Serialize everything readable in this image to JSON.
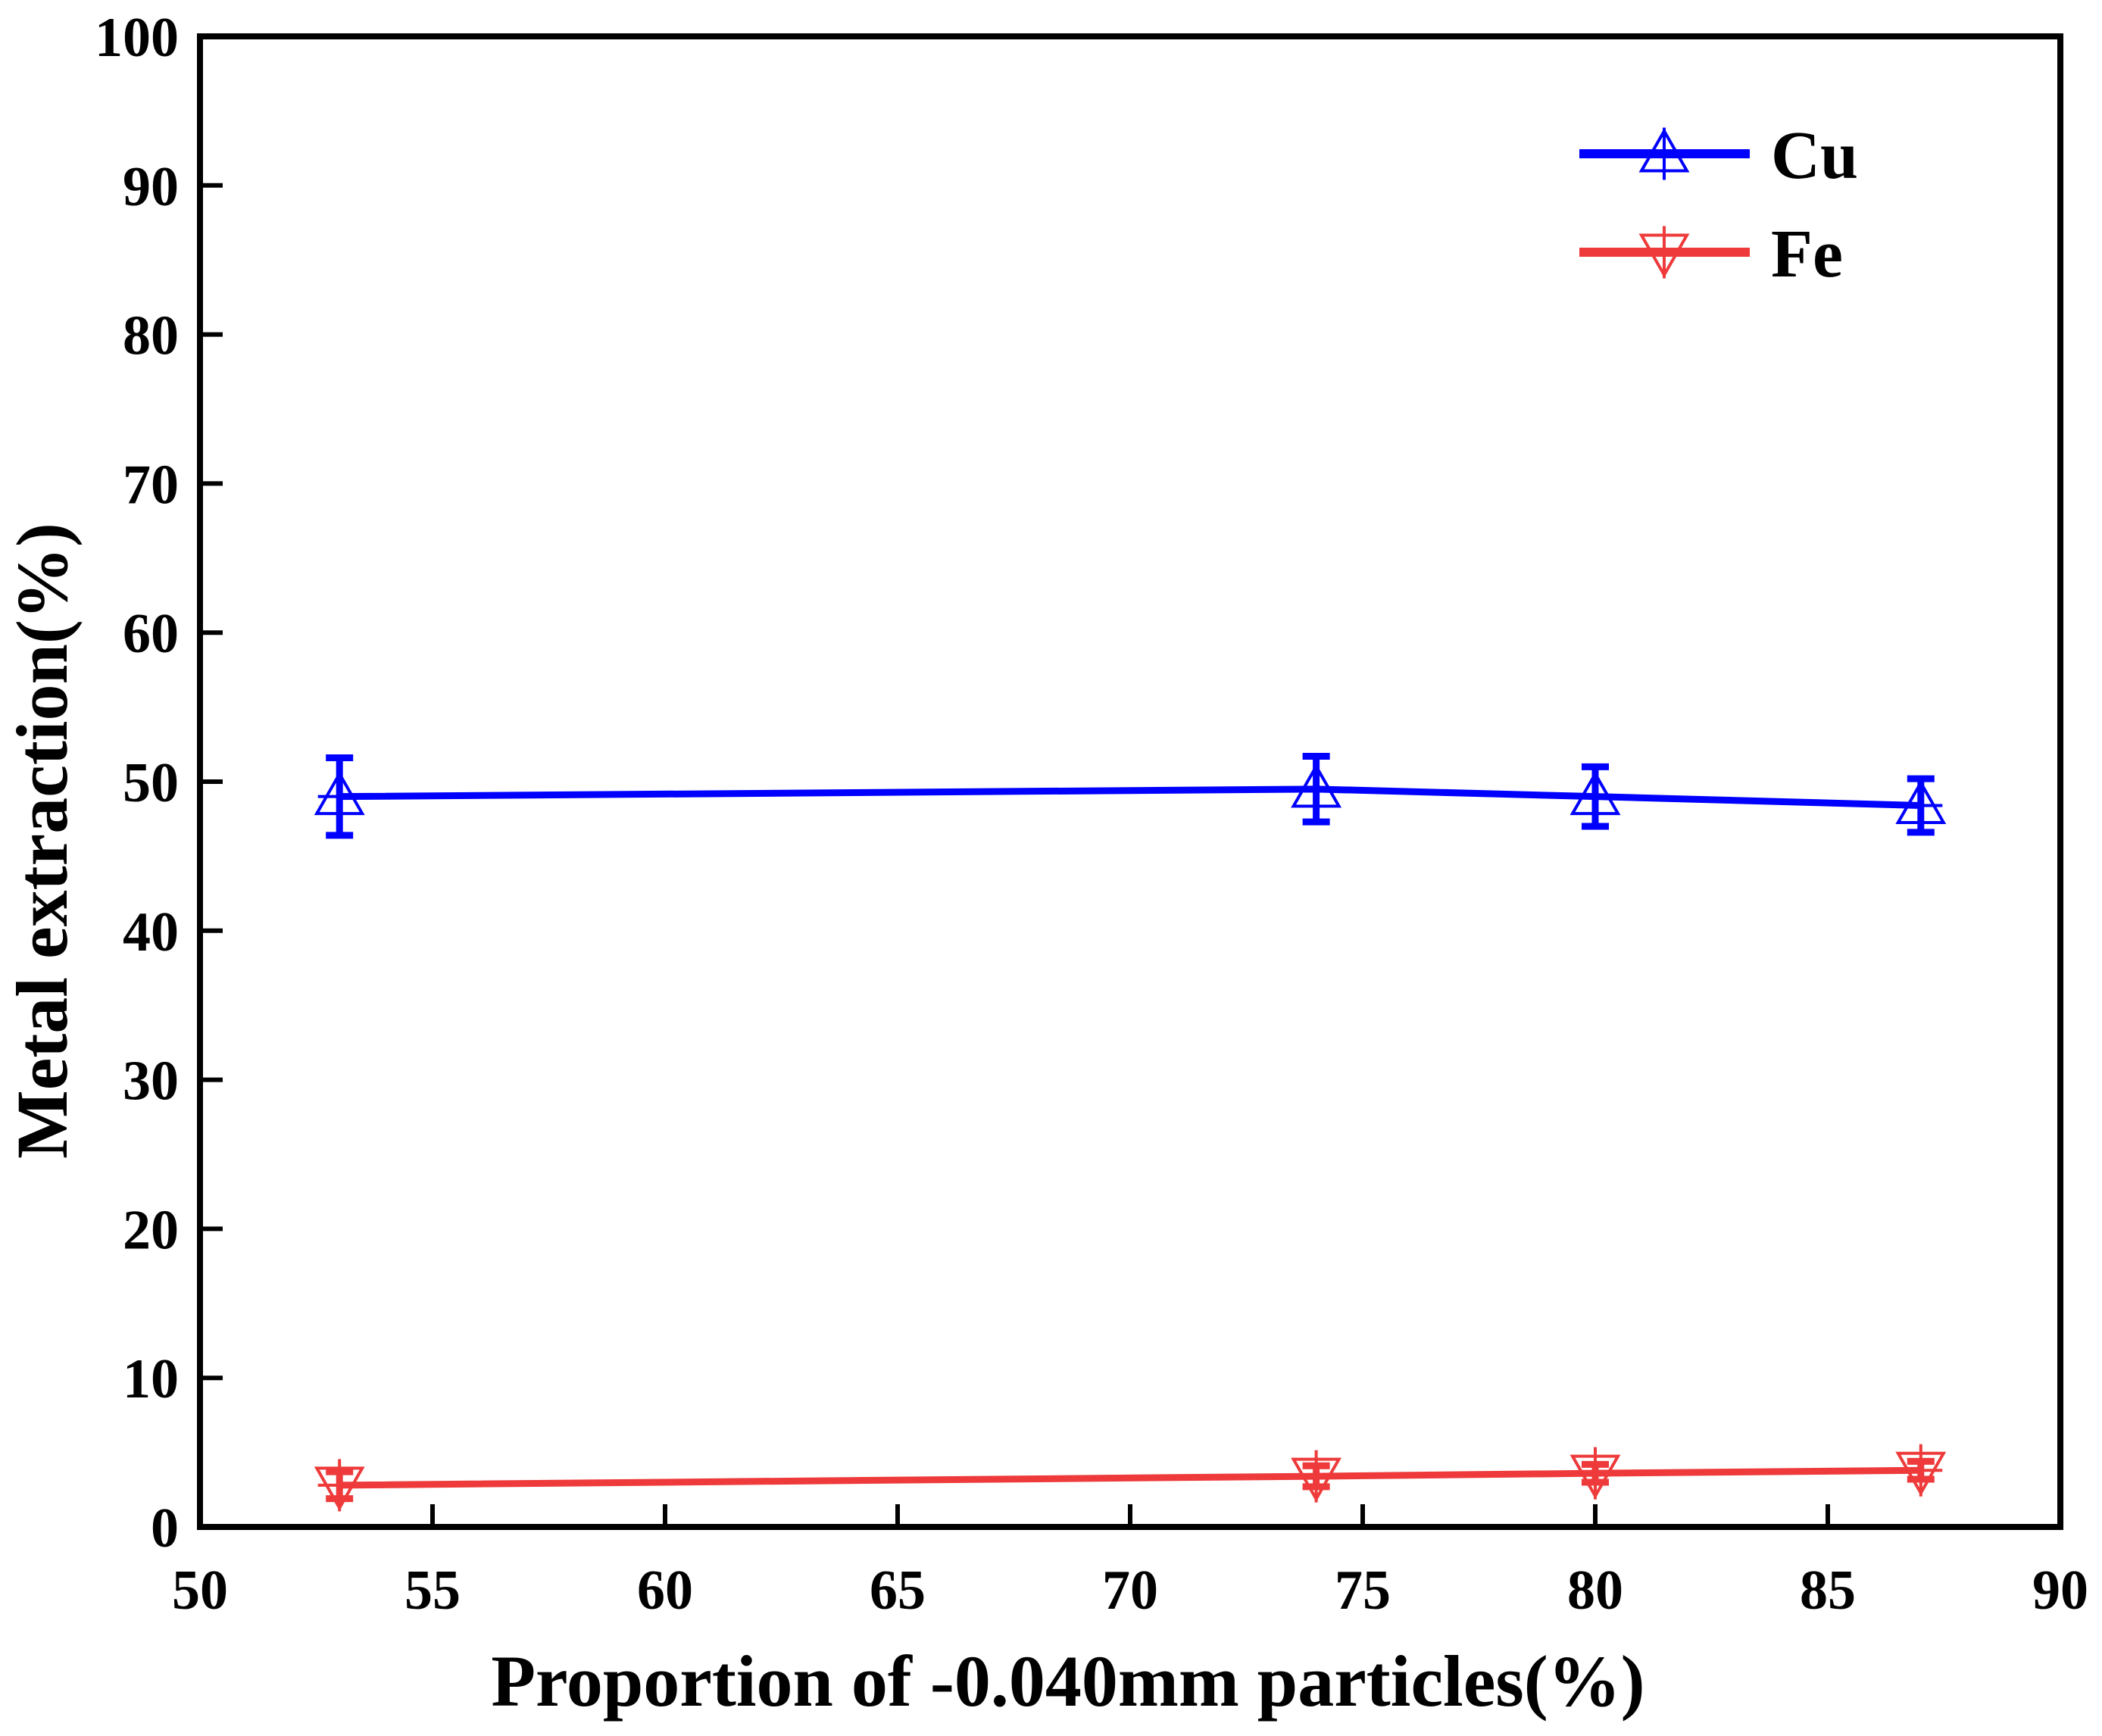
{
  "chart_data": {
    "type": "line",
    "title": "",
    "xlabel": "Proportion of -0.040mm particles(%)",
    "ylabel": "Metal extraction(%)",
    "xlim": [
      50,
      90
    ],
    "ylim": [
      0,
      100
    ],
    "xticks": [
      50,
      55,
      60,
      65,
      70,
      75,
      80,
      85,
      90
    ],
    "yticks": [
      0,
      10,
      20,
      30,
      40,
      50,
      60,
      70,
      80,
      90,
      100
    ],
    "grid": false,
    "legend_position": "top-right",
    "series": [
      {
        "name": "Cu",
        "color": "#0000ff",
        "marker": "triangle-up-open",
        "x": [
          53,
          74,
          80,
          87
        ],
        "values": [
          49.0,
          49.5,
          49.0,
          48.4
        ],
        "error": [
          2.6,
          2.2,
          2.0,
          1.8
        ]
      },
      {
        "name": "Fe",
        "color": "#ee3a3a",
        "marker": "triangle-down-open",
        "x": [
          53,
          74,
          80,
          87
        ],
        "values": [
          2.8,
          3.4,
          3.6,
          3.8
        ],
        "error": [
          0.9,
          0.7,
          0.6,
          0.6
        ]
      }
    ]
  }
}
